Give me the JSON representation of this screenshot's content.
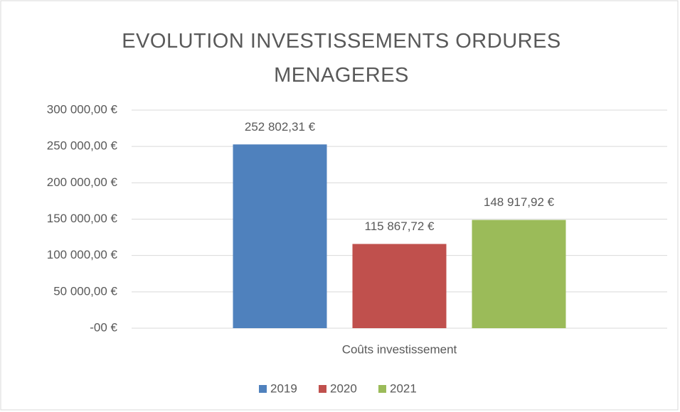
{
  "chart_data": {
    "type": "bar",
    "title": "EVOLUTION INVESTISSEMENTS ORDURES MENAGERES",
    "categories": [
      "Coûts investissement"
    ],
    "series": [
      {
        "name": "2019",
        "color": "#4f81bd",
        "values": [
          252802.31
        ],
        "value_labels": [
          "252 802,31 €"
        ]
      },
      {
        "name": "2020",
        "color": "#c0504d",
        "values": [
          115867.72
        ],
        "value_labels": [
          "115 867,72 €"
        ]
      },
      {
        "name": "2021",
        "color": "#9bbb59",
        "values": [
          148917.92
        ],
        "value_labels": [
          "148 917,92 €"
        ]
      }
    ],
    "ylim": [
      0,
      300000
    ],
    "yticks": [
      {
        "value": 0,
        "label": "-00 €"
      },
      {
        "value": 50000,
        "label": "50 000,00 €"
      },
      {
        "value": 100000,
        "label": "100 000,00 €"
      },
      {
        "value": 150000,
        "label": "150 000,00 €"
      },
      {
        "value": 200000,
        "label": "200 000,00 €"
      },
      {
        "value": 250000,
        "label": "250 000,00 €"
      },
      {
        "value": 300000,
        "label": "300 000,00 €"
      }
    ],
    "grid": true,
    "legend": "bottom"
  }
}
